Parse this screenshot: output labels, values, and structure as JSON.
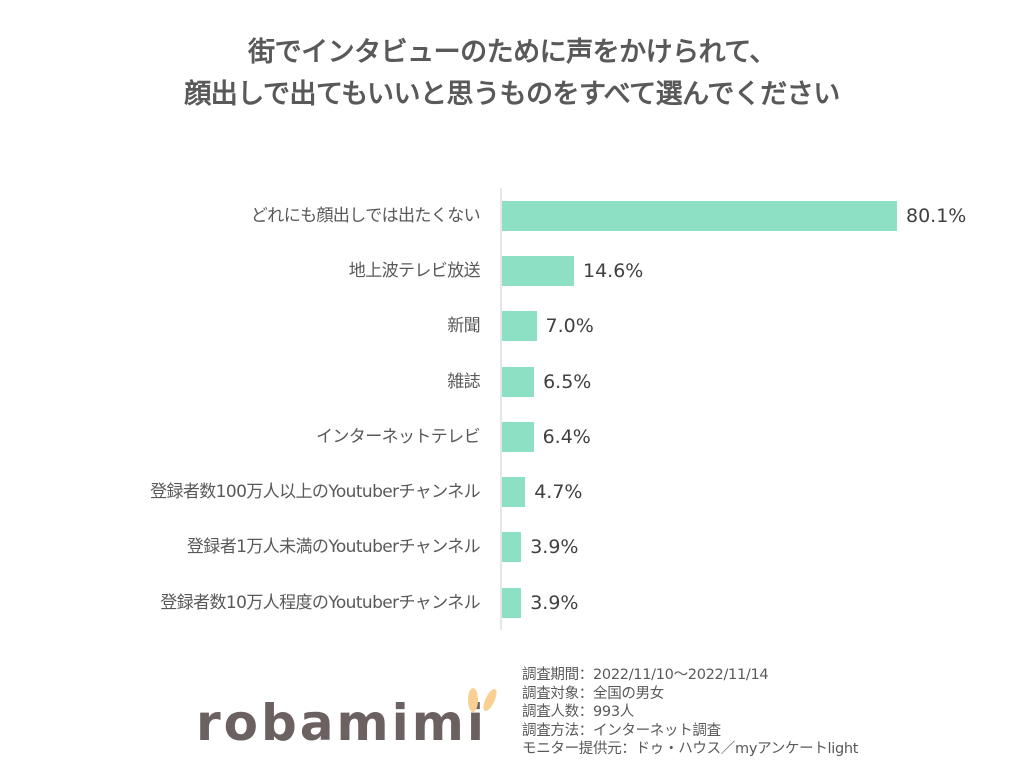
{
  "title": {
    "line1": "街でインタビューのために声をかけられて、",
    "line2": "顔出しで出てもいいと思うものをすべて選んでください"
  },
  "colors": {
    "bar": "#8de0c3",
    "axis": "#e6e6e6",
    "title_text": "#595959",
    "logo_text": "#6b6160",
    "logo_ears": "#f9cf94"
  },
  "chart_data": {
    "type": "bar",
    "orientation": "horizontal",
    "title": "街でインタビューのために声をかけられて、顔出しで出てもいいと思うものをすべて選んでください",
    "xlabel": "",
    "ylabel": "",
    "categories": [
      "どれにも顔出しでは出たくない",
      "地上波テレビ放送",
      "新聞",
      "雑誌",
      "インターネットテレビ",
      "登録者数100万人以上のYoutuberチャンネル",
      "登録者1万人未満のYoutuberチャンネル",
      "登録者数10万人程度のYoutuberチャンネル"
    ],
    "values": [
      80.1,
      14.6,
      7.0,
      6.5,
      6.4,
      4.7,
      3.9,
      3.9
    ],
    "value_labels": [
      "80.1%",
      "14.6%",
      "7.0%",
      "6.5%",
      "6.4%",
      "4.7%",
      "3.9%",
      "3.9%"
    ],
    "unit": "%",
    "xlim": [
      0,
      100
    ],
    "grid": false,
    "legend": null
  },
  "logo": {
    "text": "robamimi"
  },
  "survey_notes": [
    "調査期間：2022/11/10～2022/11/14",
    "調査対象：全国の男女",
    "調査人数：993人",
    "調査方法：インターネット調査",
    "モニター提供元：ドゥ・ハウス／myアンケートlight"
  ]
}
